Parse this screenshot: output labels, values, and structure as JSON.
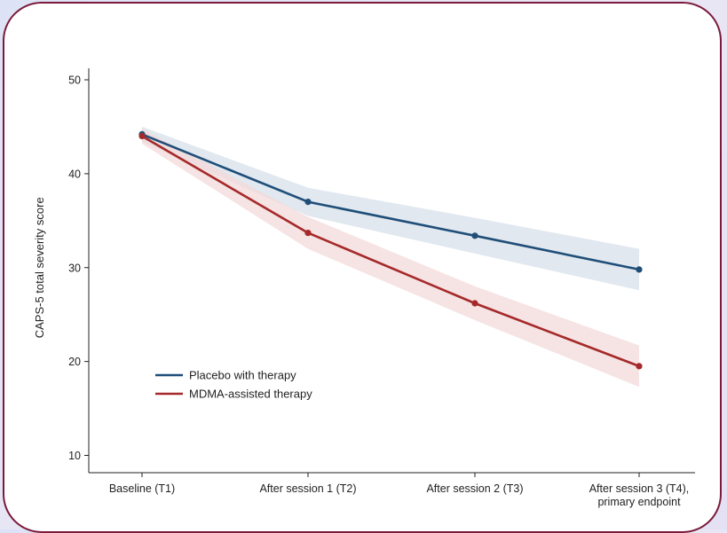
{
  "chart_data": {
    "type": "line",
    "title": "",
    "xlabel": "",
    "ylabel": "CAPS-5 total severity score",
    "categories": [
      [
        "Baseline (T1)"
      ],
      [
        "After session 1 (T2)"
      ],
      [
        "After session 2 (T3)"
      ],
      [
        "After session 3 (T4),",
        "primary endpoint"
      ]
    ],
    "yticks": [
      10,
      20,
      30,
      40,
      50
    ],
    "ylim": [
      8,
      52
    ],
    "grid": false,
    "legend_position": "bottom-left",
    "series": [
      {
        "name": "Placebo with therapy",
        "color": "#1f4e79",
        "band_color": "#d7e0ea",
        "values": [
          44.2,
          37.0,
          33.4,
          29.8
        ],
        "ci_lower": [
          43.4,
          35.5,
          31.5,
          27.6
        ],
        "ci_upper": [
          45.0,
          38.5,
          35.3,
          32.0
        ]
      },
      {
        "name": "MDMA-assisted therapy",
        "color": "#a5292a",
        "band_color": "#f3d9d9",
        "values": [
          44.0,
          33.7,
          26.2,
          19.5
        ],
        "ci_lower": [
          43.2,
          32.0,
          24.4,
          17.3
        ],
        "ci_upper": [
          44.8,
          35.4,
          28.0,
          21.7
        ]
      }
    ]
  }
}
